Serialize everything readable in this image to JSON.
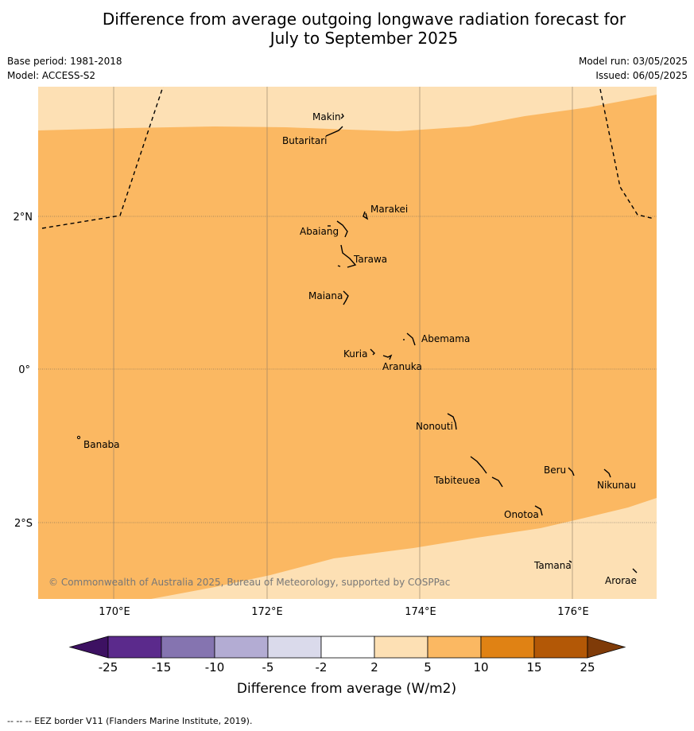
{
  "title_line1": "Difference from average outgoing longwave radiation forecast for",
  "title_line2": "July to September 2025",
  "base_period": "Base period: 1981-2018",
  "model": "Model: ACCESS-S2",
  "model_run": "Model run: 03/05/2025",
  "issued": "Issued: 06/05/2025",
  "copyright": "© Commonwealth of Australia 2025, Bureau of Meteorology, supported by COSPPac",
  "y_ticks": [
    "2°N",
    "0°",
    "2°S"
  ],
  "x_ticks": [
    "170°E",
    "172°E",
    "174°E",
    "176°E"
  ],
  "islands": {
    "makin": "Makin",
    "butaritari": "Butaritari",
    "marakei": "Marakei",
    "abaiang": "Abaiang",
    "tarawa": "Tarawa",
    "maiana": "Maiana",
    "abemama": "Abemama",
    "kuria": "Kuria",
    "aranuka": "Aranuka",
    "nonouti": "Nonouti",
    "banaba": "Banaba",
    "tabiteuea": "Tabiteuea",
    "beru": "Beru",
    "nikunau": "Nikunau",
    "onotoa": "Onotoa",
    "tamana": "Tamana",
    "arorae": "Arorae"
  },
  "colorbar": {
    "label": "Difference from average (W/m2)",
    "ticks": [
      "-25",
      "-15",
      "-10",
      "-5",
      "-2",
      "2",
      "5",
      "10",
      "15",
      "25"
    ],
    "colors": [
      "#3d1162",
      "#5b2a8c",
      "#8574b0",
      "#b3acd3",
      "#dadaeb",
      "#ffffff",
      "#fde0b4",
      "#fbb862",
      "#e08214",
      "#b35806",
      "#7f3b08"
    ]
  },
  "map_colors": {
    "light": "#fde0b4",
    "medium": "#fbb862"
  },
  "footer": "-- -- -- EEZ border V11 (Flanders Marine Institute, 2019)."
}
